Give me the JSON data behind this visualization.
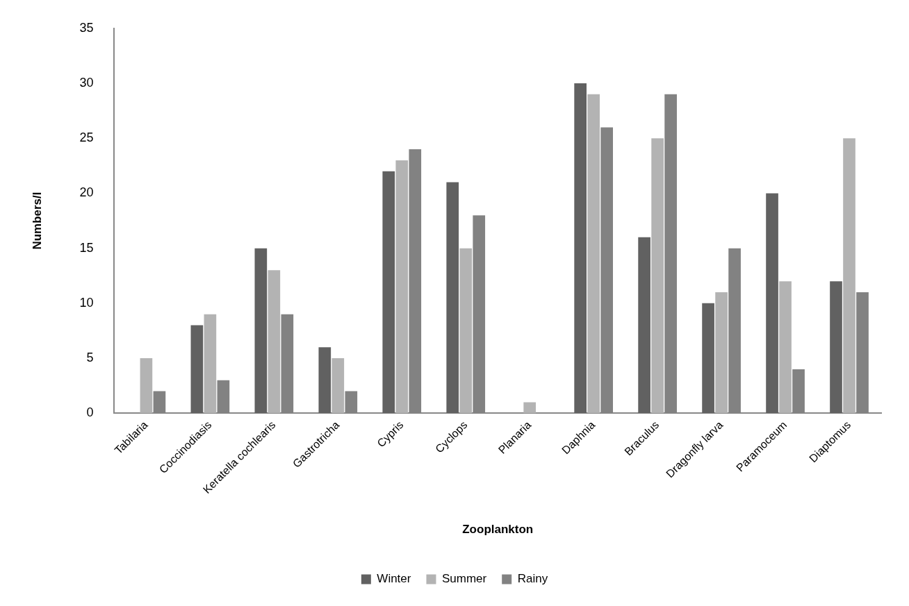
{
  "chart_data": {
    "type": "bar",
    "xlabel": "Zooplankton",
    "ylabel": "Numbers/l",
    "categories": [
      "Tabilaria",
      "Coccinodiasis",
      "Keratella cochlearis",
      "Gastrotricha",
      "Cypris",
      "Cyclops",
      "Planaria",
      "Daphnia",
      "Braculus",
      "Dragonfly larva",
      "Paramoceum",
      "Diaptomus"
    ],
    "series": [
      {
        "name": "Winter",
        "color": "#616161",
        "values": [
          0,
          8,
          15,
          6,
          22,
          21,
          0,
          30,
          16,
          10,
          20,
          12
        ]
      },
      {
        "name": "Summer",
        "color": "#b3b3b3",
        "values": [
          5,
          9,
          13,
          5,
          23,
          15,
          1,
          29,
          25,
          11,
          12,
          25
        ]
      },
      {
        "name": "Rainy",
        "color": "#828282",
        "values": [
          2,
          3,
          9,
          2,
          24,
          18,
          0,
          26,
          29,
          15,
          4,
          11
        ]
      }
    ],
    "ylim": [
      0,
      35
    ],
    "yticks": [
      0,
      5,
      10,
      15,
      20,
      25,
      30,
      35
    ],
    "grid": false,
    "legend": "bottom"
  }
}
